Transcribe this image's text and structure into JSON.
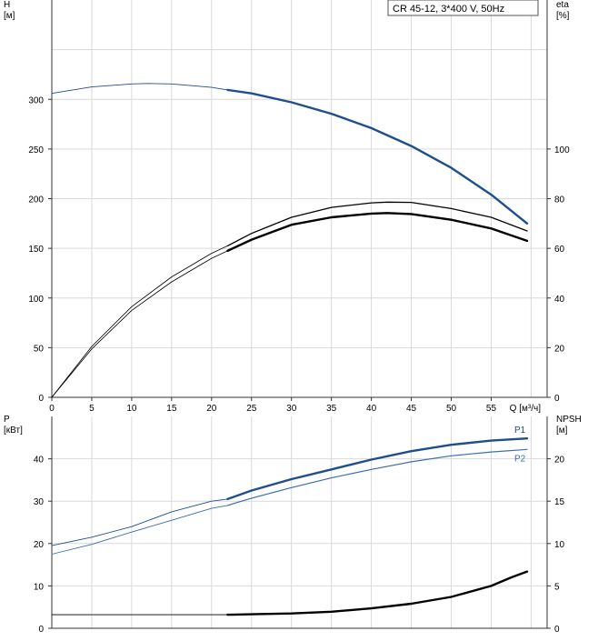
{
  "model_label": "CR 45-12, 3*400 V, 50Hz",
  "colors": {
    "grid": "#d9d9d9",
    "axis": "#333333",
    "text": "#000000",
    "blue_dark": "#1f4e8c",
    "blue_mid": "#3a6db0",
    "black": "#000000",
    "gray": "#555555"
  },
  "chart_data": [
    {
      "type": "line",
      "panel": "head-efficiency",
      "x_axis": {
        "label": "Q [м³/ч]",
        "range": [
          0,
          62
        ],
        "ticks": [
          0,
          5,
          10,
          15,
          20,
          25,
          30,
          35,
          40,
          45,
          50,
          55
        ],
        "grid_every": 5
      },
      "y_left": {
        "label_line1": "H",
        "label_line2": "[м]",
        "range": [
          0,
          400
        ],
        "ticks": [
          0,
          50,
          100,
          150,
          200,
          250,
          300
        ],
        "grid_every": 50
      },
      "y_right": {
        "label_line1": "eta",
        "label_line2": "[%]",
        "range": [
          0,
          160
        ],
        "ticks": [
          0,
          20,
          40,
          60,
          80,
          100
        ]
      },
      "grid": true,
      "series": [
        {
          "key": "head",
          "axis": "left",
          "color": "#1f4e8c",
          "width_thin": 0.9,
          "width_thick": 2.4,
          "bold_from_x": 22,
          "points": [
            [
              0,
              306
            ],
            [
              5,
              312.5
            ],
            [
              10,
              315.5
            ],
            [
              12,
              316
            ],
            [
              15,
              315.5
            ],
            [
              20,
              312
            ],
            [
              22,
              309.5
            ],
            [
              25,
              306
            ],
            [
              30,
              297
            ],
            [
              35,
              285.5
            ],
            [
              40,
              271
            ],
            [
              45,
              253
            ],
            [
              50,
              231
            ],
            [
              55,
              204
            ],
            [
              59.5,
              175
            ]
          ]
        },
        {
          "key": "eta_thin",
          "axis": "right",
          "color": "#000000",
          "width_thin": 0.8,
          "width_thick": 1.3,
          "bold_from_x": 22,
          "points": [
            [
              0,
              0
            ],
            [
              5,
              20.5
            ],
            [
              10,
              36.5
            ],
            [
              15,
              48.5
            ],
            [
              20,
              58
            ],
            [
              22,
              61
            ],
            [
              25,
              66
            ],
            [
              30,
              72.5
            ],
            [
              35,
              76.5
            ],
            [
              40,
              78.3
            ],
            [
              42,
              78.6
            ],
            [
              45,
              78.5
            ],
            [
              50,
              76
            ],
            [
              55,
              72.5
            ],
            [
              59.5,
              67
            ]
          ]
        },
        {
          "key": "eta_bold",
          "axis": "right",
          "color": "#000000",
          "width_thin": 0.8,
          "width_thick": 2.4,
          "bold_from_x": 22,
          "points": [
            [
              0,
              0
            ],
            [
              5,
              19.5
            ],
            [
              10,
              35
            ],
            [
              15,
              46.5
            ],
            [
              20,
              56
            ],
            [
              22,
              59
            ],
            [
              25,
              63.5
            ],
            [
              30,
              69.5
            ],
            [
              35,
              72.5
            ],
            [
              40,
              74
            ],
            [
              42,
              74.2
            ],
            [
              45,
              73.8
            ],
            [
              50,
              71.5
            ],
            [
              55,
              68
            ],
            [
              59.5,
              63
            ]
          ]
        }
      ]
    },
    {
      "type": "line",
      "panel": "power-npsh",
      "x_axis": {
        "range": [
          0,
          62
        ],
        "grid_every": 5
      },
      "y_left": {
        "label_line1": "P",
        "label_line2": "[кВт]",
        "range": [
          0,
          50
        ],
        "ticks": [
          0,
          10,
          20,
          30,
          40
        ],
        "grid_every": 10
      },
      "y_right": {
        "label_line1": "NPSH",
        "label_line2": "[м]",
        "range": [
          0,
          25
        ],
        "ticks": [
          0,
          5,
          10,
          15,
          20
        ]
      },
      "grid": true,
      "series": [
        {
          "key": "P1",
          "name": "P1",
          "axis": "left",
          "color": "#1f4e8c",
          "width_thin": 0.9,
          "width_thick": 2.4,
          "bold_from_x": 22,
          "points": [
            [
              0,
              19.5
            ],
            [
              5,
              21.5
            ],
            [
              10,
              24
            ],
            [
              15,
              27.5
            ],
            [
              20,
              30
            ],
            [
              22,
              30.5
            ],
            [
              25,
              32.5
            ],
            [
              30,
              35.2
            ],
            [
              35,
              37.5
            ],
            [
              40,
              39.8
            ],
            [
              45,
              41.8
            ],
            [
              50,
              43.3
            ],
            [
              55,
              44.3
            ],
            [
              59.5,
              44.8
            ]
          ]
        },
        {
          "key": "P2",
          "name": "P2",
          "axis": "left",
          "color": "#3a6db0",
          "width_thin": 0.9,
          "width_thick": 1.2,
          "bold_from_x": 22,
          "points": [
            [
              0,
              17.5
            ],
            [
              5,
              19.8
            ],
            [
              10,
              22.7
            ],
            [
              15,
              25.5
            ],
            [
              20,
              28.3
            ],
            [
              22,
              29
            ],
            [
              25,
              30.7
            ],
            [
              30,
              33.2
            ],
            [
              35,
              35.5
            ],
            [
              40,
              37.5
            ],
            [
              45,
              39.3
            ],
            [
              50,
              40.7
            ],
            [
              55,
              41.6
            ],
            [
              59.5,
              42.2
            ]
          ]
        },
        {
          "key": "npsh",
          "axis": "right",
          "color": "#000000",
          "width_thin": 0.9,
          "width_thick": 2.4,
          "bold_from_x": 22,
          "points": [
            [
              0,
              1.6
            ],
            [
              10,
              1.6
            ],
            [
              20,
              1.6
            ],
            [
              22,
              1.6
            ],
            [
              25,
              1.65
            ],
            [
              30,
              1.75
            ],
            [
              35,
              1.95
            ],
            [
              40,
              2.35
            ],
            [
              45,
              2.9
            ],
            [
              50,
              3.7
            ],
            [
              55,
              5
            ],
            [
              57.5,
              6.0
            ],
            [
              59.5,
              6.7
            ]
          ]
        }
      ]
    }
  ]
}
